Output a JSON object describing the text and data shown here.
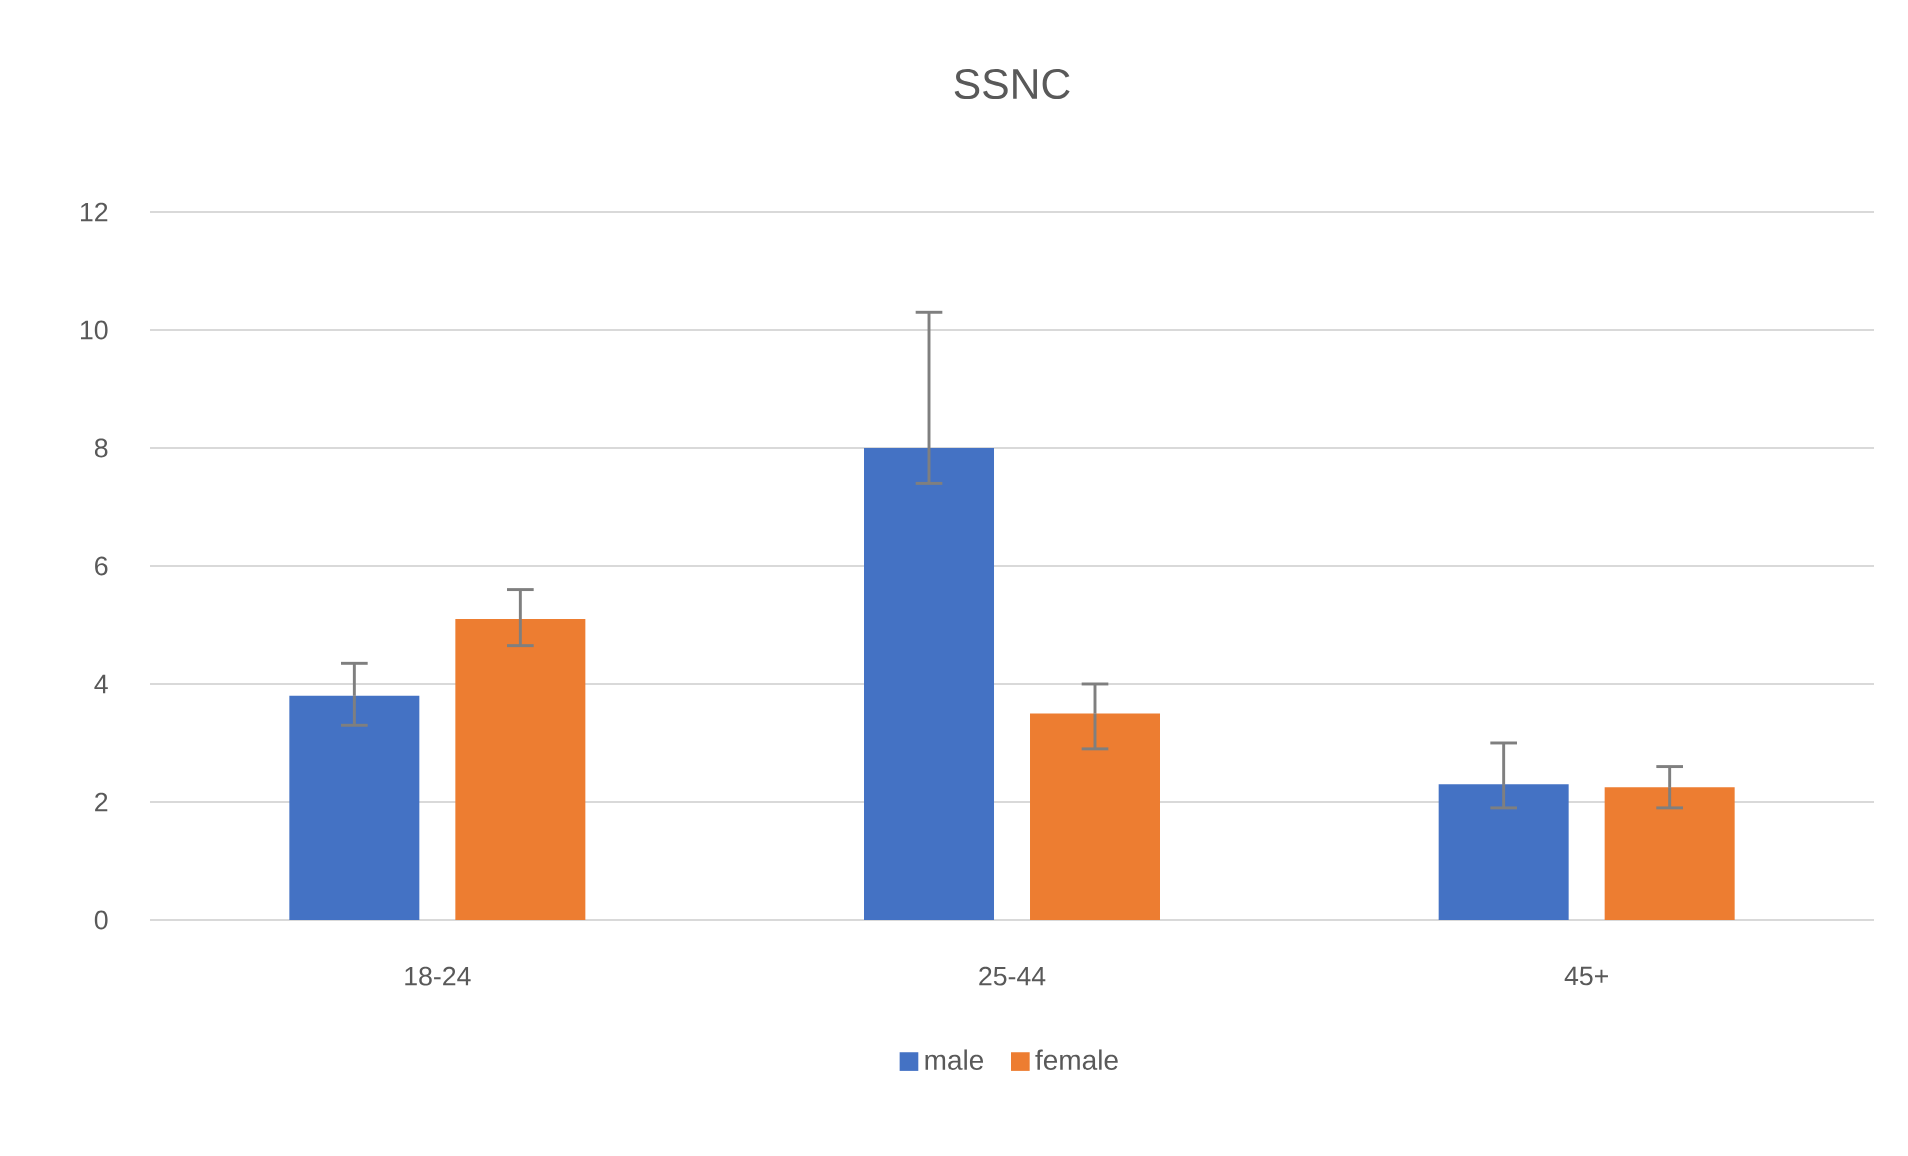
{
  "chart_data": {
    "type": "bar",
    "title": "SSNC",
    "categories": [
      "18-24",
      "25-44",
      "45+"
    ],
    "series": [
      {
        "name": "male",
        "color": "#4472c4",
        "values": [
          3.8,
          8.0,
          2.3
        ],
        "errors": [
          [
            3.3,
            4.35
          ],
          [
            7.4,
            10.3
          ],
          [
            1.9,
            3.0
          ]
        ]
      },
      {
        "name": "female",
        "color": "#ed7d31",
        "values": [
          5.1,
          3.5,
          2.25
        ],
        "errors": [
          [
            4.65,
            5.6
          ],
          [
            2.9,
            4.0
          ],
          [
            1.9,
            2.6
          ]
        ]
      }
    ],
    "ylim": [
      0,
      12
    ],
    "yticks": [
      0,
      2,
      4,
      6,
      8,
      10,
      12
    ],
    "grid": "y",
    "legend": "bottom"
  }
}
